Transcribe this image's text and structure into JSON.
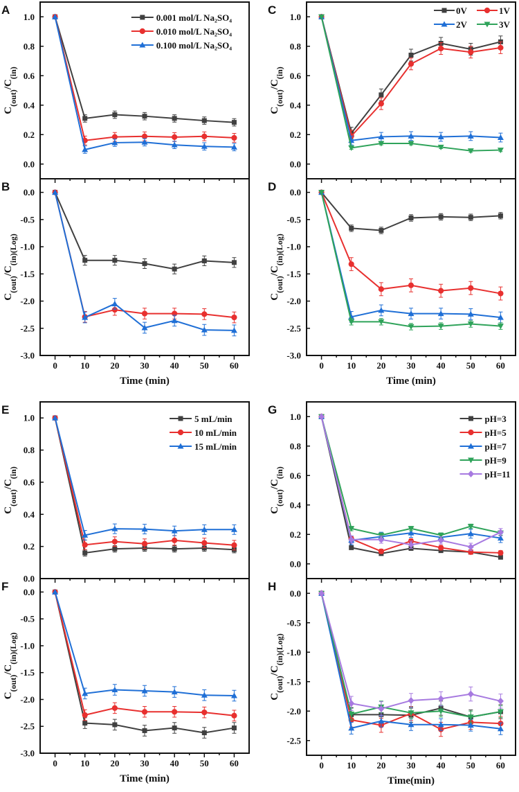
{
  "colors": {
    "black": "#404040",
    "red": "#e8302f",
    "blue": "#1f6fd6",
    "green": "#2fa35a",
    "purple": "#a77ae0"
  },
  "chart_data": [
    {
      "panel": "A",
      "type": "line",
      "ylabel": "C(out)/C(in)",
      "xlim": [
        -5,
        65
      ],
      "ylim": [
        -0.1,
        1.1
      ],
      "yticks": [
        0,
        0.2,
        0.4,
        0.6,
        0.8,
        1.0
      ],
      "yfmt": 1,
      "legend": "top-right",
      "legend_cols": 1,
      "x": [
        0,
        10,
        20,
        30,
        40,
        50,
        60
      ],
      "series": [
        {
          "name": "0.001 mol/L Na₂SO₄",
          "color": "black",
          "marker": "square",
          "values": [
            1,
            0.31,
            0.335,
            0.325,
            0.31,
            0.295,
            0.283
          ],
          "err": 0.025
        },
        {
          "name": "0.010 mol/L Na₂SO₄",
          "color": "red",
          "marker": "circle",
          "values": [
            1,
            0.16,
            0.184,
            0.188,
            0.183,
            0.188,
            0.178
          ],
          "err": 0.03
        },
        {
          "name": "0.100 mol/L Na₂SO₄",
          "color": "blue",
          "marker": "triangle-up",
          "values": [
            1,
            0.098,
            0.145,
            0.148,
            0.13,
            0.12,
            0.115
          ],
          "err": 0.025
        }
      ]
    },
    {
      "panel": "B",
      "type": "line",
      "ylabel": "C(out)/C(in)(Log)",
      "xlabel": "Time (min)",
      "xticks": [
        0,
        10,
        20,
        30,
        40,
        50,
        60
      ],
      "xlim": [
        -5,
        65
      ],
      "ylim": [
        -3.0,
        0.25
      ],
      "yticks": [
        0,
        -0.5,
        -1.0,
        -1.5,
        -2.0,
        -2.5,
        -3.0
      ],
      "yfmt": 1,
      "x": [
        0,
        10,
        20,
        30,
        40,
        50,
        60
      ],
      "series": [
        {
          "color": "black",
          "marker": "square",
          "values": [
            0,
            -1.25,
            -1.25,
            -1.31,
            -1.41,
            -1.26,
            -1.29
          ],
          "err": 0.09
        },
        {
          "color": "red",
          "marker": "circle",
          "values": [
            0,
            -2.29,
            -2.16,
            -2.23,
            -2.23,
            -2.24,
            -2.3
          ],
          "err": 0.1
        },
        {
          "color": "blue",
          "marker": "triangle-up",
          "values": [
            0,
            -2.3,
            -2.05,
            -2.49,
            -2.36,
            -2.53,
            -2.54
          ],
          "err": 0.1
        }
      ]
    },
    {
      "panel": "C",
      "type": "line",
      "ylabel": "C(out)/C(in)",
      "xlim": [
        -5,
        65
      ],
      "ylim": [
        -0.1,
        1.1
      ],
      "yticks": [
        0,
        0.2,
        0.4,
        0.6,
        0.8,
        1.0
      ],
      "yfmt": 1,
      "legend": "top-right",
      "legend_cols": 2,
      "x": [
        0,
        10,
        20,
        30,
        40,
        50,
        60
      ],
      "series": [
        {
          "name": "0V",
          "color": "black",
          "marker": "square",
          "values": [
            1,
            0.21,
            0.47,
            0.74,
            0.82,
            0.78,
            0.83
          ],
          "err": 0.04
        },
        {
          "name": "1V",
          "color": "red",
          "marker": "circle",
          "values": [
            1,
            0.19,
            0.41,
            0.68,
            0.785,
            0.76,
            0.79
          ],
          "err": 0.04
        },
        {
          "name": "2V",
          "color": "blue",
          "marker": "triangle-up",
          "values": [
            1,
            0.16,
            0.185,
            0.19,
            0.185,
            0.19,
            0.18
          ],
          "err": 0.03
        },
        {
          "name": "3V",
          "color": "green",
          "marker": "triangle-down",
          "values": [
            1,
            0.11,
            0.14,
            0.14,
            0.115,
            0.09,
            0.095
          ],
          "err": 0.01
        }
      ]
    },
    {
      "panel": "D",
      "type": "line",
      "ylabel": "C(out)/C(in)(Log)",
      "xlabel": "Time (min)",
      "xticks": [
        0,
        10,
        20,
        30,
        40,
        50,
        60
      ],
      "xlim": [
        -5,
        65
      ],
      "ylim": [
        -3.0,
        0.25
      ],
      "yticks": [
        0,
        -0.5,
        -1.0,
        -1.5,
        -2.0,
        -2.5,
        -3.0
      ],
      "yfmt": 1,
      "x": [
        0,
        10,
        20,
        30,
        40,
        50,
        60
      ],
      "series": [
        {
          "color": "black",
          "marker": "square",
          "values": [
            0,
            -0.66,
            -0.7,
            -0.47,
            -0.45,
            -0.46,
            -0.43
          ],
          "err": 0.06
        },
        {
          "color": "red",
          "marker": "circle",
          "values": [
            0,
            -1.32,
            -1.78,
            -1.71,
            -1.81,
            -1.76,
            -1.86
          ],
          "err": 0.12
        },
        {
          "color": "blue",
          "marker": "triangle-up",
          "values": [
            0,
            -2.29,
            -2.17,
            -2.23,
            -2.23,
            -2.24,
            -2.3
          ],
          "err": 0.1
        },
        {
          "color": "green",
          "marker": "triangle-down",
          "values": [
            0,
            -2.38,
            -2.38,
            -2.47,
            -2.46,
            -2.42,
            -2.46
          ],
          "err": 0.06
        }
      ]
    },
    {
      "panel": "E",
      "type": "line",
      "ylabel": "C(out)/C(in)",
      "xlim": [
        -5,
        65
      ],
      "ylim": [
        0,
        1.1
      ],
      "yticks": [
        0,
        0.2,
        0.4,
        0.6,
        0.8,
        1.0
      ],
      "yfmt": 1,
      "legend": "top-right",
      "legend_cols": 1,
      "x": [
        0,
        10,
        20,
        30,
        40,
        50,
        60
      ],
      "series": [
        {
          "name": "5   mL/min",
          "color": "black",
          "marker": "square",
          "values": [
            1,
            0.16,
            0.185,
            0.19,
            0.185,
            0.19,
            0.18
          ],
          "err": 0.02
        },
        {
          "name": "10 mL/min",
          "color": "red",
          "marker": "circle",
          "values": [
            1,
            0.21,
            0.23,
            0.217,
            0.238,
            0.222,
            0.208
          ],
          "err": 0.03
        },
        {
          "name": "15 mL/min",
          "color": "blue",
          "marker": "triangle-up",
          "values": [
            1,
            0.27,
            0.31,
            0.308,
            0.297,
            0.305,
            0.305
          ],
          "err": 0.03
        }
      ]
    },
    {
      "panel": "F",
      "type": "line",
      "ylabel": "C(out)/C(in)(Log)",
      "xlabel": "Time (min)",
      "xticks": [
        0,
        10,
        20,
        30,
        40,
        50,
        60
      ],
      "xlim": [
        -5,
        65
      ],
      "ylim": [
        -3.0,
        0.25
      ],
      "yticks": [
        0,
        -0.5,
        -1.0,
        -1.5,
        -2.0,
        -2.5,
        -3.0
      ],
      "yfmt": 1,
      "x": [
        0,
        10,
        20,
        30,
        40,
        50,
        60
      ],
      "series": [
        {
          "color": "black",
          "marker": "square",
          "values": [
            0,
            -2.44,
            -2.47,
            -2.58,
            -2.53,
            -2.62,
            -2.53
          ],
          "err": 0.1
        },
        {
          "color": "red",
          "marker": "circle",
          "values": [
            0,
            -2.29,
            -2.16,
            -2.23,
            -2.23,
            -2.24,
            -2.3
          ],
          "err": 0.1
        },
        {
          "color": "blue",
          "marker": "triangle-up",
          "values": [
            0,
            -1.89,
            -1.82,
            -1.84,
            -1.86,
            -1.92,
            -1.93
          ],
          "err": 0.1
        }
      ]
    },
    {
      "panel": "G",
      "type": "line",
      "ylabel": "C(out)/C(in)",
      "xlim": [
        -5,
        65
      ],
      "ylim": [
        -0.1,
        1.1
      ],
      "yticks": [
        0,
        0.2,
        0.4,
        0.6,
        0.8,
        1.0
      ],
      "yfmt": 1,
      "legend": "top-right",
      "legend_cols": 1,
      "x": [
        0,
        10,
        20,
        30,
        40,
        50,
        60
      ],
      "series": [
        {
          "name": "pH=3",
          "color": "black",
          "marker": "square",
          "values": [
            1,
            0.11,
            0.07,
            0.105,
            0.09,
            0.08,
            0.045
          ],
          "err": 0.01
        },
        {
          "name": "pH=5",
          "color": "red",
          "marker": "circle",
          "values": [
            1,
            0.17,
            0.085,
            0.155,
            0.11,
            0.08,
            0.075
          ],
          "err": 0.015
        },
        {
          "name": "pH=7",
          "color": "blue",
          "marker": "triangle-up",
          "values": [
            1,
            0.16,
            0.185,
            0.21,
            0.18,
            0.205,
            0.175
          ],
          "err": 0.03
        },
        {
          "name": "pH=9",
          "color": "green",
          "marker": "triangle-down",
          "values": [
            1,
            0.24,
            0.195,
            0.24,
            0.195,
            0.255,
            0.21
          ],
          "err": 0.015
        },
        {
          "name": "pH=11",
          "color": "purple",
          "marker": "diamond",
          "values": [
            1,
            0.165,
            0.165,
            0.13,
            0.16,
            0.115,
            0.215
          ],
          "err": 0.025
        }
      ]
    },
    {
      "panel": "H",
      "type": "line",
      "ylabel": "C(out)/C(in)(Log)",
      "xlabel": "Time(min)",
      "xticks": [
        0,
        10,
        20,
        30,
        40,
        50,
        60
      ],
      "xlim": [
        -5,
        65
      ],
      "ylim": [
        -2.75,
        0.25
      ],
      "yticks": [
        0,
        -0.5,
        -1.0,
        -1.5,
        -2.0,
        -2.5
      ],
      "yfmt": 1,
      "x": [
        0,
        10,
        20,
        30,
        40,
        50,
        60
      ],
      "series": [
        {
          "color": "black",
          "marker": "square",
          "values": [
            0,
            -2.06,
            -2.06,
            -2.07,
            -1.95,
            -2.1,
            -2.01
          ],
          "err": 0.12
        },
        {
          "color": "red",
          "marker": "circle",
          "values": [
            0,
            -2.15,
            -2.24,
            -2.04,
            -2.31,
            -2.19,
            -2.21
          ],
          "err": 0.12
        },
        {
          "color": "blue",
          "marker": "triangle-up",
          "values": [
            0,
            -2.29,
            -2.17,
            -2.23,
            -2.23,
            -2.24,
            -2.3
          ],
          "err": 0.1
        },
        {
          "color": "green",
          "marker": "triangle-down",
          "values": [
            0,
            -2.05,
            -1.93,
            -2.03,
            -2.0,
            -2.1,
            -2.01
          ],
          "err": 0.1
        },
        {
          "color": "purple",
          "marker": "diamond",
          "values": [
            0,
            -1.87,
            -1.96,
            -1.82,
            -1.79,
            -1.71,
            -1.83
          ],
          "err": 0.12
        }
      ]
    }
  ]
}
